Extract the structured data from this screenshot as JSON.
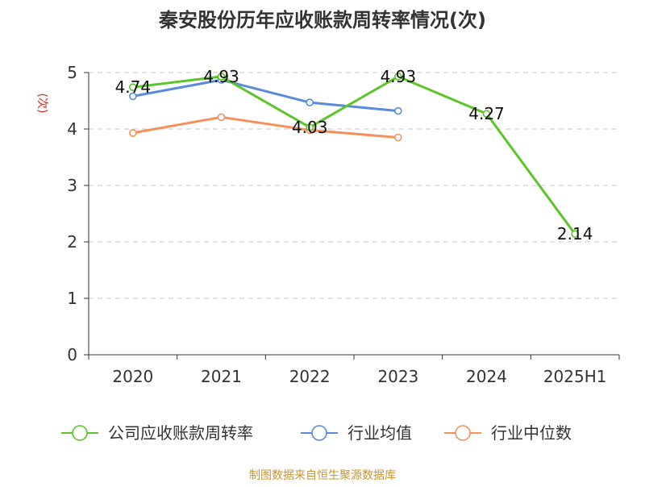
{
  "chart_data": {
    "type": "line",
    "title": "秦安股份历年应收账款周转率情况(次)",
    "ylabel": "(次)",
    "xlabel": "",
    "categories": [
      "2020",
      "2021",
      "2022",
      "2023",
      "2024",
      "2025H1"
    ],
    "ylim": [
      0,
      5
    ],
    "yticks": [
      0,
      1,
      2,
      3,
      4,
      5
    ],
    "grid": true,
    "legend_position": "bottom",
    "series": [
      {
        "name": "公司应收账款周转率",
        "color": "#5cc52a",
        "values": [
          4.74,
          4.93,
          4.03,
          4.93,
          4.27,
          2.14
        ],
        "data_labels": [
          "4.74",
          "4.93",
          "4.03",
          "4.93",
          "4.27",
          "2.14"
        ]
      },
      {
        "name": "行业均值",
        "color": "#5a8bdc",
        "values": [
          4.58,
          4.87,
          4.47,
          4.32,
          null,
          null
        ]
      },
      {
        "name": "行业中位数",
        "color": "#f5905a",
        "values": [
          3.93,
          4.21,
          3.98,
          3.85,
          null,
          null
        ]
      }
    ]
  },
  "source": "制图数据来自恒生聚源数据库"
}
